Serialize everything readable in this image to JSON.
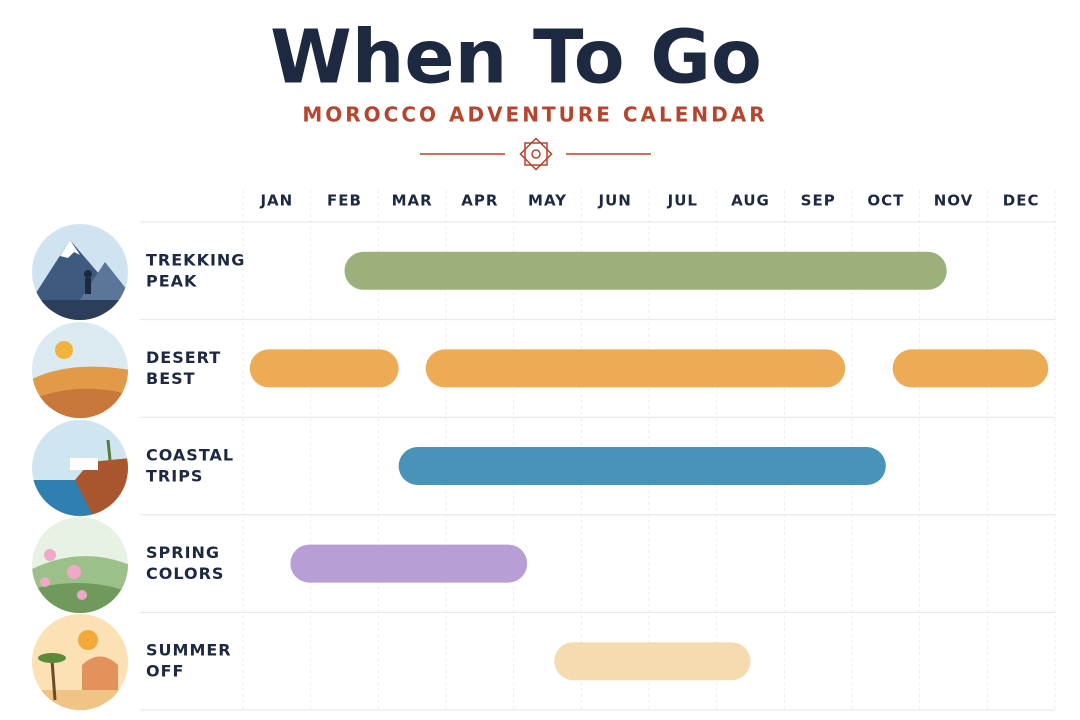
{
  "chart_data": {
    "type": "timeline",
    "title": "When To Go",
    "subtitle": "MOROCCO ADVENTURE CALENDAR",
    "categories": [
      "JAN",
      "FEB",
      "MAR",
      "APR",
      "MAY",
      "JUN",
      "JUL",
      "AUG",
      "SEP",
      "OCT",
      "NOV",
      "DEC"
    ],
    "xlim": [
      0,
      12
    ],
    "grid": true,
    "series": [
      {
        "name": "TREKKING PEAK",
        "color": "#9bb07a",
        "ranges": [
          [
            1.5,
            10.4
          ]
        ]
      },
      {
        "name": "DESERT BEST",
        "color": "#eeab55",
        "ranges": [
          [
            0.1,
            2.3
          ],
          [
            2.7,
            8.9
          ],
          [
            9.6,
            11.9
          ]
        ]
      },
      {
        "name": "COASTAL TRIPS",
        "color": "#4a93b8",
        "ranges": [
          [
            2.3,
            9.5
          ]
        ]
      },
      {
        "name": "SPRING COLORS",
        "color": "#b79ed6",
        "ranges": [
          [
            0.7,
            4.2
          ]
        ]
      },
      {
        "name": "SUMMER OFF",
        "color": "#f5dcb0",
        "ranges": [
          [
            4.6,
            7.5
          ]
        ]
      }
    ]
  }
}
